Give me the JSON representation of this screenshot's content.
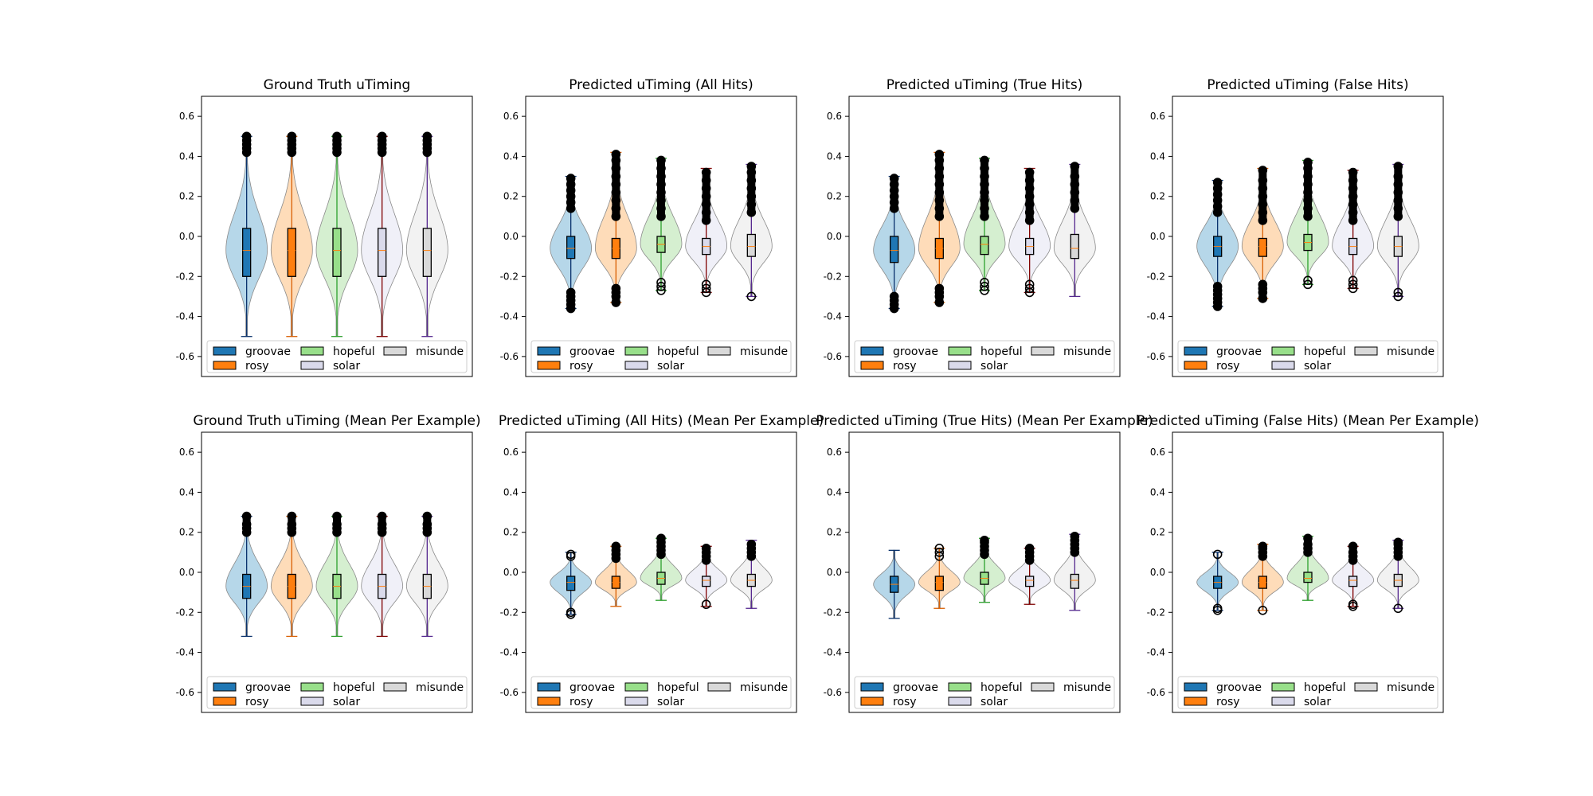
{
  "legend": {
    "placement": "lower-center",
    "ncol": 3,
    "entries": [
      "groovae",
      "rosy",
      "hopeful",
      "solar",
      "misunde"
    ]
  },
  "series_colors": [
    "#1f77b4",
    "#ff7f0e",
    "#98df8a",
    "#dadaeb",
    "#d9d9d9"
  ],
  "violin_fills": [
    "#9ecae1",
    "#fdd0a2",
    "#c7e9c0",
    "#ebebf5",
    "#eeeeee"
  ],
  "line_colors": [
    "#08306b",
    "#d95f02",
    "#2ca02c",
    "#7f0000",
    "#54278f"
  ],
  "chart_data": [
    {
      "type": "violin",
      "title": "Ground Truth uTiming",
      "categories": [
        "groovae",
        "rosy",
        "hopeful",
        "solar",
        "misunde"
      ],
      "ylim": [
        -0.7,
        0.7
      ],
      "yticks": [
        "-0.6",
        "-0.4",
        "-0.2",
        "0.0",
        "0.2",
        "0.4",
        "0.6"
      ],
      "grid": false,
      "series": [
        {
          "name": "groovae",
          "min": -0.5,
          "q1": -0.2,
          "median": -0.07,
          "q3": 0.04,
          "max": 0.5,
          "outliers_low": [],
          "outliers_high": [
            0.42,
            0.44,
            0.46,
            0.48,
            0.5
          ],
          "bulge": 0.0
        },
        {
          "name": "rosy",
          "min": -0.5,
          "q1": -0.2,
          "median": -0.07,
          "q3": 0.04,
          "max": 0.5,
          "outliers_low": [],
          "outliers_high": [
            0.42,
            0.44,
            0.46,
            0.48,
            0.5
          ],
          "bulge": 0.0
        },
        {
          "name": "hopeful",
          "min": -0.5,
          "q1": -0.2,
          "median": -0.07,
          "q3": 0.04,
          "max": 0.5,
          "outliers_low": [],
          "outliers_high": [
            0.42,
            0.44,
            0.46,
            0.48,
            0.5
          ],
          "bulge": 0.0
        },
        {
          "name": "solar",
          "min": -0.5,
          "q1": -0.2,
          "median": -0.07,
          "q3": 0.04,
          "max": 0.5,
          "outliers_low": [],
          "outliers_high": [
            0.42,
            0.44,
            0.46,
            0.48,
            0.5
          ],
          "bulge": 0.0
        },
        {
          "name": "misunde",
          "min": -0.5,
          "q1": -0.2,
          "median": -0.07,
          "q3": 0.04,
          "max": 0.5,
          "outliers_low": [],
          "outliers_high": [
            0.42,
            0.44,
            0.46,
            0.48,
            0.5
          ],
          "bulge": 0.0
        }
      ]
    },
    {
      "type": "violin",
      "title": "Predicted uTiming (All Hits)",
      "categories": [
        "groovae",
        "rosy",
        "hopeful",
        "solar",
        "misunde"
      ],
      "ylim": [
        -0.7,
        0.7
      ],
      "yticks": [
        "-0.6",
        "-0.4",
        "-0.2",
        "0.0",
        "0.2",
        "0.4",
        "0.6"
      ],
      "grid": false,
      "series": [
        {
          "name": "groovae",
          "min": -0.36,
          "q1": -0.11,
          "median": -0.06,
          "q3": 0.0,
          "max": 0.3,
          "outliers_low": [
            -0.36,
            -0.34,
            -0.32,
            -0.3,
            -0.28
          ],
          "outliers_high": [
            0.14,
            0.17,
            0.2,
            0.23,
            0.26,
            0.29
          ],
          "bulge": 0.0
        },
        {
          "name": "rosy",
          "min": -0.33,
          "q1": -0.11,
          "median": -0.06,
          "q3": -0.01,
          "max": 0.42,
          "outliers_low": [
            -0.33,
            -0.3,
            -0.28,
            -0.26
          ],
          "outliers_high": [
            0.1,
            0.14,
            0.18,
            0.22,
            0.26,
            0.3,
            0.34,
            0.38,
            0.41
          ],
          "bulge": 0.0
        },
        {
          "name": "hopeful",
          "min": -0.27,
          "q1": -0.08,
          "median": -0.04,
          "q3": 0.0,
          "max": 0.39,
          "outliers_low": [
            -0.27,
            -0.25,
            -0.23
          ],
          "outliers_high": [
            0.1,
            0.14,
            0.18,
            0.22,
            0.26,
            0.3,
            0.34,
            0.38
          ],
          "bulge": 0.0
        },
        {
          "name": "solar",
          "min": -0.28,
          "q1": -0.09,
          "median": -0.05,
          "q3": -0.01,
          "max": 0.34,
          "outliers_low": [
            -0.28,
            -0.26,
            -0.24
          ],
          "outliers_high": [
            0.08,
            0.12,
            0.16,
            0.2,
            0.24,
            0.28,
            0.32
          ],
          "bulge": 0.0
        },
        {
          "name": "misunde",
          "min": -0.3,
          "q1": -0.1,
          "median": -0.05,
          "q3": 0.01,
          "max": 0.36,
          "outliers_low": [
            -0.3
          ],
          "outliers_high": [
            0.12,
            0.16,
            0.2,
            0.24,
            0.28,
            0.32,
            0.35
          ],
          "bulge": 0.0
        }
      ]
    },
    {
      "type": "violin",
      "title": "Predicted uTiming (True Hits)",
      "categories": [
        "groovae",
        "rosy",
        "hopeful",
        "solar",
        "misunde"
      ],
      "ylim": [
        -0.7,
        0.7
      ],
      "yticks": [
        "-0.6",
        "-0.4",
        "-0.2",
        "0.0",
        "0.2",
        "0.4",
        "0.6"
      ],
      "grid": false,
      "series": [
        {
          "name": "groovae",
          "min": -0.36,
          "q1": -0.13,
          "median": -0.07,
          "q3": 0.0,
          "max": 0.3,
          "outliers_low": [
            -0.36,
            -0.34,
            -0.32,
            -0.3
          ],
          "outliers_high": [
            0.14,
            0.17,
            0.2,
            0.23,
            0.26,
            0.29
          ],
          "bulge": 0.0
        },
        {
          "name": "rosy",
          "min": -0.33,
          "q1": -0.11,
          "median": -0.06,
          "q3": -0.01,
          "max": 0.42,
          "outliers_low": [
            -0.33,
            -0.3,
            -0.28,
            -0.26
          ],
          "outliers_high": [
            0.1,
            0.14,
            0.18,
            0.22,
            0.26,
            0.3,
            0.34,
            0.38,
            0.41
          ],
          "bulge": 0.0
        },
        {
          "name": "hopeful",
          "min": -0.27,
          "q1": -0.09,
          "median": -0.04,
          "q3": 0.0,
          "max": 0.39,
          "outliers_low": [
            -0.27,
            -0.25,
            -0.23
          ],
          "outliers_high": [
            0.1,
            0.14,
            0.18,
            0.22,
            0.26,
            0.3,
            0.34,
            0.38
          ],
          "bulge": 0.0
        },
        {
          "name": "solar",
          "min": -0.28,
          "q1": -0.09,
          "median": -0.05,
          "q3": -0.01,
          "max": 0.34,
          "outliers_low": [
            -0.28,
            -0.26,
            -0.24
          ],
          "outliers_high": [
            0.08,
            0.12,
            0.16,
            0.2,
            0.24,
            0.28,
            0.32
          ],
          "bulge": 0.0
        },
        {
          "name": "misunde",
          "min": -0.3,
          "q1": -0.11,
          "median": -0.06,
          "q3": 0.01,
          "max": 0.36,
          "outliers_low": [],
          "outliers_high": [
            0.14,
            0.18,
            0.22,
            0.26,
            0.3,
            0.35
          ],
          "bulge": 0.0
        }
      ]
    },
    {
      "type": "violin",
      "title": "Predicted uTiming (False Hits)",
      "categories": [
        "groovae",
        "rosy",
        "hopeful",
        "solar",
        "misunde"
      ],
      "ylim": [
        -0.7,
        0.7
      ],
      "yticks": [
        "-0.6",
        "-0.4",
        "-0.2",
        "0.0",
        "0.2",
        "0.4",
        "0.6"
      ],
      "grid": false,
      "series": [
        {
          "name": "groovae",
          "min": -0.35,
          "q1": -0.1,
          "median": -0.05,
          "q3": 0.0,
          "max": 0.28,
          "outliers_low": [
            -0.35,
            -0.33,
            -0.31,
            -0.29,
            -0.27,
            -0.25
          ],
          "outliers_high": [
            0.12,
            0.15,
            0.18,
            0.21,
            0.24,
            0.27
          ],
          "bulge": 0.0
        },
        {
          "name": "rosy",
          "min": -0.31,
          "q1": -0.1,
          "median": -0.05,
          "q3": -0.01,
          "max": 0.34,
          "outliers_low": [
            -0.31,
            -0.28,
            -0.26,
            -0.24
          ],
          "outliers_high": [
            0.08,
            0.12,
            0.16,
            0.2,
            0.24,
            0.28,
            0.33
          ],
          "bulge": 0.0
        },
        {
          "name": "hopeful",
          "min": -0.24,
          "q1": -0.07,
          "median": -0.03,
          "q3": 0.01,
          "max": 0.38,
          "outliers_low": [
            -0.24,
            -0.22
          ],
          "outliers_high": [
            0.1,
            0.14,
            0.18,
            0.22,
            0.26,
            0.3,
            0.34,
            0.37
          ],
          "bulge": 0.0
        },
        {
          "name": "solar",
          "min": -0.26,
          "q1": -0.09,
          "median": -0.05,
          "q3": -0.01,
          "max": 0.33,
          "outliers_low": [
            -0.26,
            -0.24,
            -0.22
          ],
          "outliers_high": [
            0.08,
            0.12,
            0.16,
            0.2,
            0.24,
            0.28,
            0.32
          ],
          "bulge": 0.0
        },
        {
          "name": "misunde",
          "min": -0.3,
          "q1": -0.1,
          "median": -0.05,
          "q3": 0.0,
          "max": 0.36,
          "outliers_low": [
            -0.3,
            -0.28
          ],
          "outliers_high": [
            0.1,
            0.14,
            0.18,
            0.22,
            0.26,
            0.3,
            0.35
          ],
          "bulge": 0.0
        }
      ]
    },
    {
      "type": "violin",
      "title": "Ground Truth uTiming (Mean Per Example)",
      "categories": [
        "groovae",
        "rosy",
        "hopeful",
        "solar",
        "misunde"
      ],
      "ylim": [
        -0.7,
        0.7
      ],
      "yticks": [
        "-0.6",
        "-0.4",
        "-0.2",
        "0.0",
        "0.2",
        "0.4",
        "0.6"
      ],
      "grid": false,
      "series": [
        {
          "name": "groovae",
          "min": -0.32,
          "q1": -0.13,
          "median": -0.07,
          "q3": -0.01,
          "max": 0.28,
          "outliers_low": [],
          "outliers_high": [
            0.2,
            0.22,
            0.24,
            0.28
          ],
          "bulge": 0.0
        },
        {
          "name": "rosy",
          "min": -0.32,
          "q1": -0.13,
          "median": -0.07,
          "q3": -0.01,
          "max": 0.28,
          "outliers_low": [],
          "outliers_high": [
            0.2,
            0.22,
            0.24,
            0.28
          ],
          "bulge": 0.0
        },
        {
          "name": "hopeful",
          "min": -0.32,
          "q1": -0.13,
          "median": -0.07,
          "q3": -0.01,
          "max": 0.28,
          "outliers_low": [],
          "outliers_high": [
            0.2,
            0.22,
            0.24,
            0.28
          ],
          "bulge": 0.0
        },
        {
          "name": "solar",
          "min": -0.32,
          "q1": -0.13,
          "median": -0.07,
          "q3": -0.01,
          "max": 0.28,
          "outliers_low": [],
          "outliers_high": [
            0.2,
            0.22,
            0.24,
            0.28
          ],
          "bulge": 0.0
        },
        {
          "name": "misunde",
          "min": -0.32,
          "q1": -0.13,
          "median": -0.07,
          "q3": -0.01,
          "max": 0.28,
          "outliers_low": [],
          "outliers_high": [
            0.2,
            0.22,
            0.24,
            0.28
          ],
          "bulge": 0.0
        }
      ]
    },
    {
      "type": "violin",
      "title": "Predicted uTiming (All Hits) (Mean Per Example)",
      "categories": [
        "groovae",
        "rosy",
        "hopeful",
        "solar",
        "misunde"
      ],
      "ylim": [
        -0.7,
        0.7
      ],
      "yticks": [
        "-0.6",
        "-0.4",
        "-0.2",
        "0.0",
        "0.2",
        "0.4",
        "0.6"
      ],
      "grid": false,
      "series": [
        {
          "name": "groovae",
          "min": -0.21,
          "q1": -0.09,
          "median": -0.05,
          "q3": -0.02,
          "max": 0.1,
          "outliers_low": [
            -0.21,
            -0.2
          ],
          "outliers_high": [
            0.08,
            0.09
          ],
          "bulge": 0.0
        },
        {
          "name": "rosy",
          "min": -0.17,
          "q1": -0.08,
          "median": -0.05,
          "q3": -0.02,
          "max": 0.13,
          "outliers_low": [],
          "outliers_high": [
            0.07,
            0.09,
            0.11,
            0.13
          ],
          "bulge": 0.0
        },
        {
          "name": "hopeful",
          "min": -0.14,
          "q1": -0.06,
          "median": -0.03,
          "q3": 0.0,
          "max": 0.17,
          "outliers_low": [],
          "outliers_high": [
            0.09,
            0.11,
            0.13,
            0.15,
            0.17
          ],
          "bulge": 0.0
        },
        {
          "name": "solar",
          "min": -0.17,
          "q1": -0.07,
          "median": -0.04,
          "q3": -0.02,
          "max": 0.13,
          "outliers_low": [
            -0.16
          ],
          "outliers_high": [
            0.06,
            0.08,
            0.1,
            0.12
          ],
          "bulge": 0.0
        },
        {
          "name": "misunde",
          "min": -0.18,
          "q1": -0.07,
          "median": -0.04,
          "q3": -0.01,
          "max": 0.16,
          "outliers_low": [],
          "outliers_high": [
            0.08,
            0.1,
            0.12,
            0.14
          ],
          "bulge": 0.0
        }
      ]
    },
    {
      "type": "violin",
      "title": "Predicted uTiming (True Hits) (Mean Per Example)",
      "categories": [
        "groovae",
        "rosy",
        "hopeful",
        "solar",
        "misunde"
      ],
      "ylim": [
        -0.7,
        0.7
      ],
      "yticks": [
        "-0.6",
        "-0.4",
        "-0.2",
        "0.0",
        "0.2",
        "0.4",
        "0.6"
      ],
      "grid": false,
      "series": [
        {
          "name": "groovae",
          "min": -0.23,
          "q1": -0.1,
          "median": -0.06,
          "q3": -0.02,
          "max": 0.11,
          "outliers_low": [],
          "outliers_high": [],
          "bulge": 0.0
        },
        {
          "name": "rosy",
          "min": -0.18,
          "q1": -0.09,
          "median": -0.05,
          "q3": -0.02,
          "max": 0.12,
          "outliers_low": [],
          "outliers_high": [
            0.08,
            0.1,
            0.12
          ],
          "bulge": 0.0
        },
        {
          "name": "hopeful",
          "min": -0.15,
          "q1": -0.06,
          "median": -0.03,
          "q3": 0.0,
          "max": 0.17,
          "outliers_low": [],
          "outliers_high": [
            0.09,
            0.11,
            0.13,
            0.15,
            0.16
          ],
          "bulge": 0.0
        },
        {
          "name": "solar",
          "min": -0.16,
          "q1": -0.07,
          "median": -0.04,
          "q3": -0.02,
          "max": 0.12,
          "outliers_low": [],
          "outliers_high": [
            0.06,
            0.08,
            0.1,
            0.12
          ],
          "bulge": 0.0
        },
        {
          "name": "misunde",
          "min": -0.19,
          "q1": -0.08,
          "median": -0.04,
          "q3": -0.01,
          "max": 0.19,
          "outliers_low": [],
          "outliers_high": [
            0.1,
            0.12,
            0.14,
            0.16,
            0.18
          ],
          "bulge": 0.0
        }
      ]
    },
    {
      "type": "violin",
      "title": "Predicted uTiming (False Hits) (Mean Per Example)",
      "categories": [
        "groovae",
        "rosy",
        "hopeful",
        "solar",
        "misunde"
      ],
      "ylim": [
        -0.7,
        0.7
      ],
      "yticks": [
        "-0.6",
        "-0.4",
        "-0.2",
        "0.0",
        "0.2",
        "0.4",
        "0.6"
      ],
      "grid": false,
      "series": [
        {
          "name": "groovae",
          "min": -0.19,
          "q1": -0.08,
          "median": -0.05,
          "q3": -0.02,
          "max": 0.1,
          "outliers_low": [
            -0.19,
            -0.18
          ],
          "outliers_high": [
            0.09
          ],
          "bulge": 0.0
        },
        {
          "name": "rosy",
          "min": -0.19,
          "q1": -0.08,
          "median": -0.05,
          "q3": -0.02,
          "max": 0.14,
          "outliers_low": [
            -0.19
          ],
          "outliers_high": [
            0.08,
            0.1,
            0.12,
            0.13
          ],
          "bulge": 0.0
        },
        {
          "name": "hopeful",
          "min": -0.14,
          "q1": -0.05,
          "median": -0.03,
          "q3": 0.0,
          "max": 0.18,
          "outliers_low": [],
          "outliers_high": [
            0.1,
            0.12,
            0.14,
            0.17
          ],
          "bulge": 0.0
        },
        {
          "name": "solar",
          "min": -0.17,
          "q1": -0.07,
          "median": -0.04,
          "q3": -0.02,
          "max": 0.13,
          "outliers_low": [
            -0.17,
            -0.16
          ],
          "outliers_high": [
            0.06,
            0.08,
            0.1,
            0.13
          ],
          "bulge": 0.0
        },
        {
          "name": "misunde",
          "min": -0.18,
          "q1": -0.07,
          "median": -0.04,
          "q3": -0.01,
          "max": 0.16,
          "outliers_low": [
            -0.18
          ],
          "outliers_high": [
            0.08,
            0.1,
            0.12,
            0.14,
            0.15
          ],
          "bulge": 0.0
        }
      ]
    }
  ]
}
